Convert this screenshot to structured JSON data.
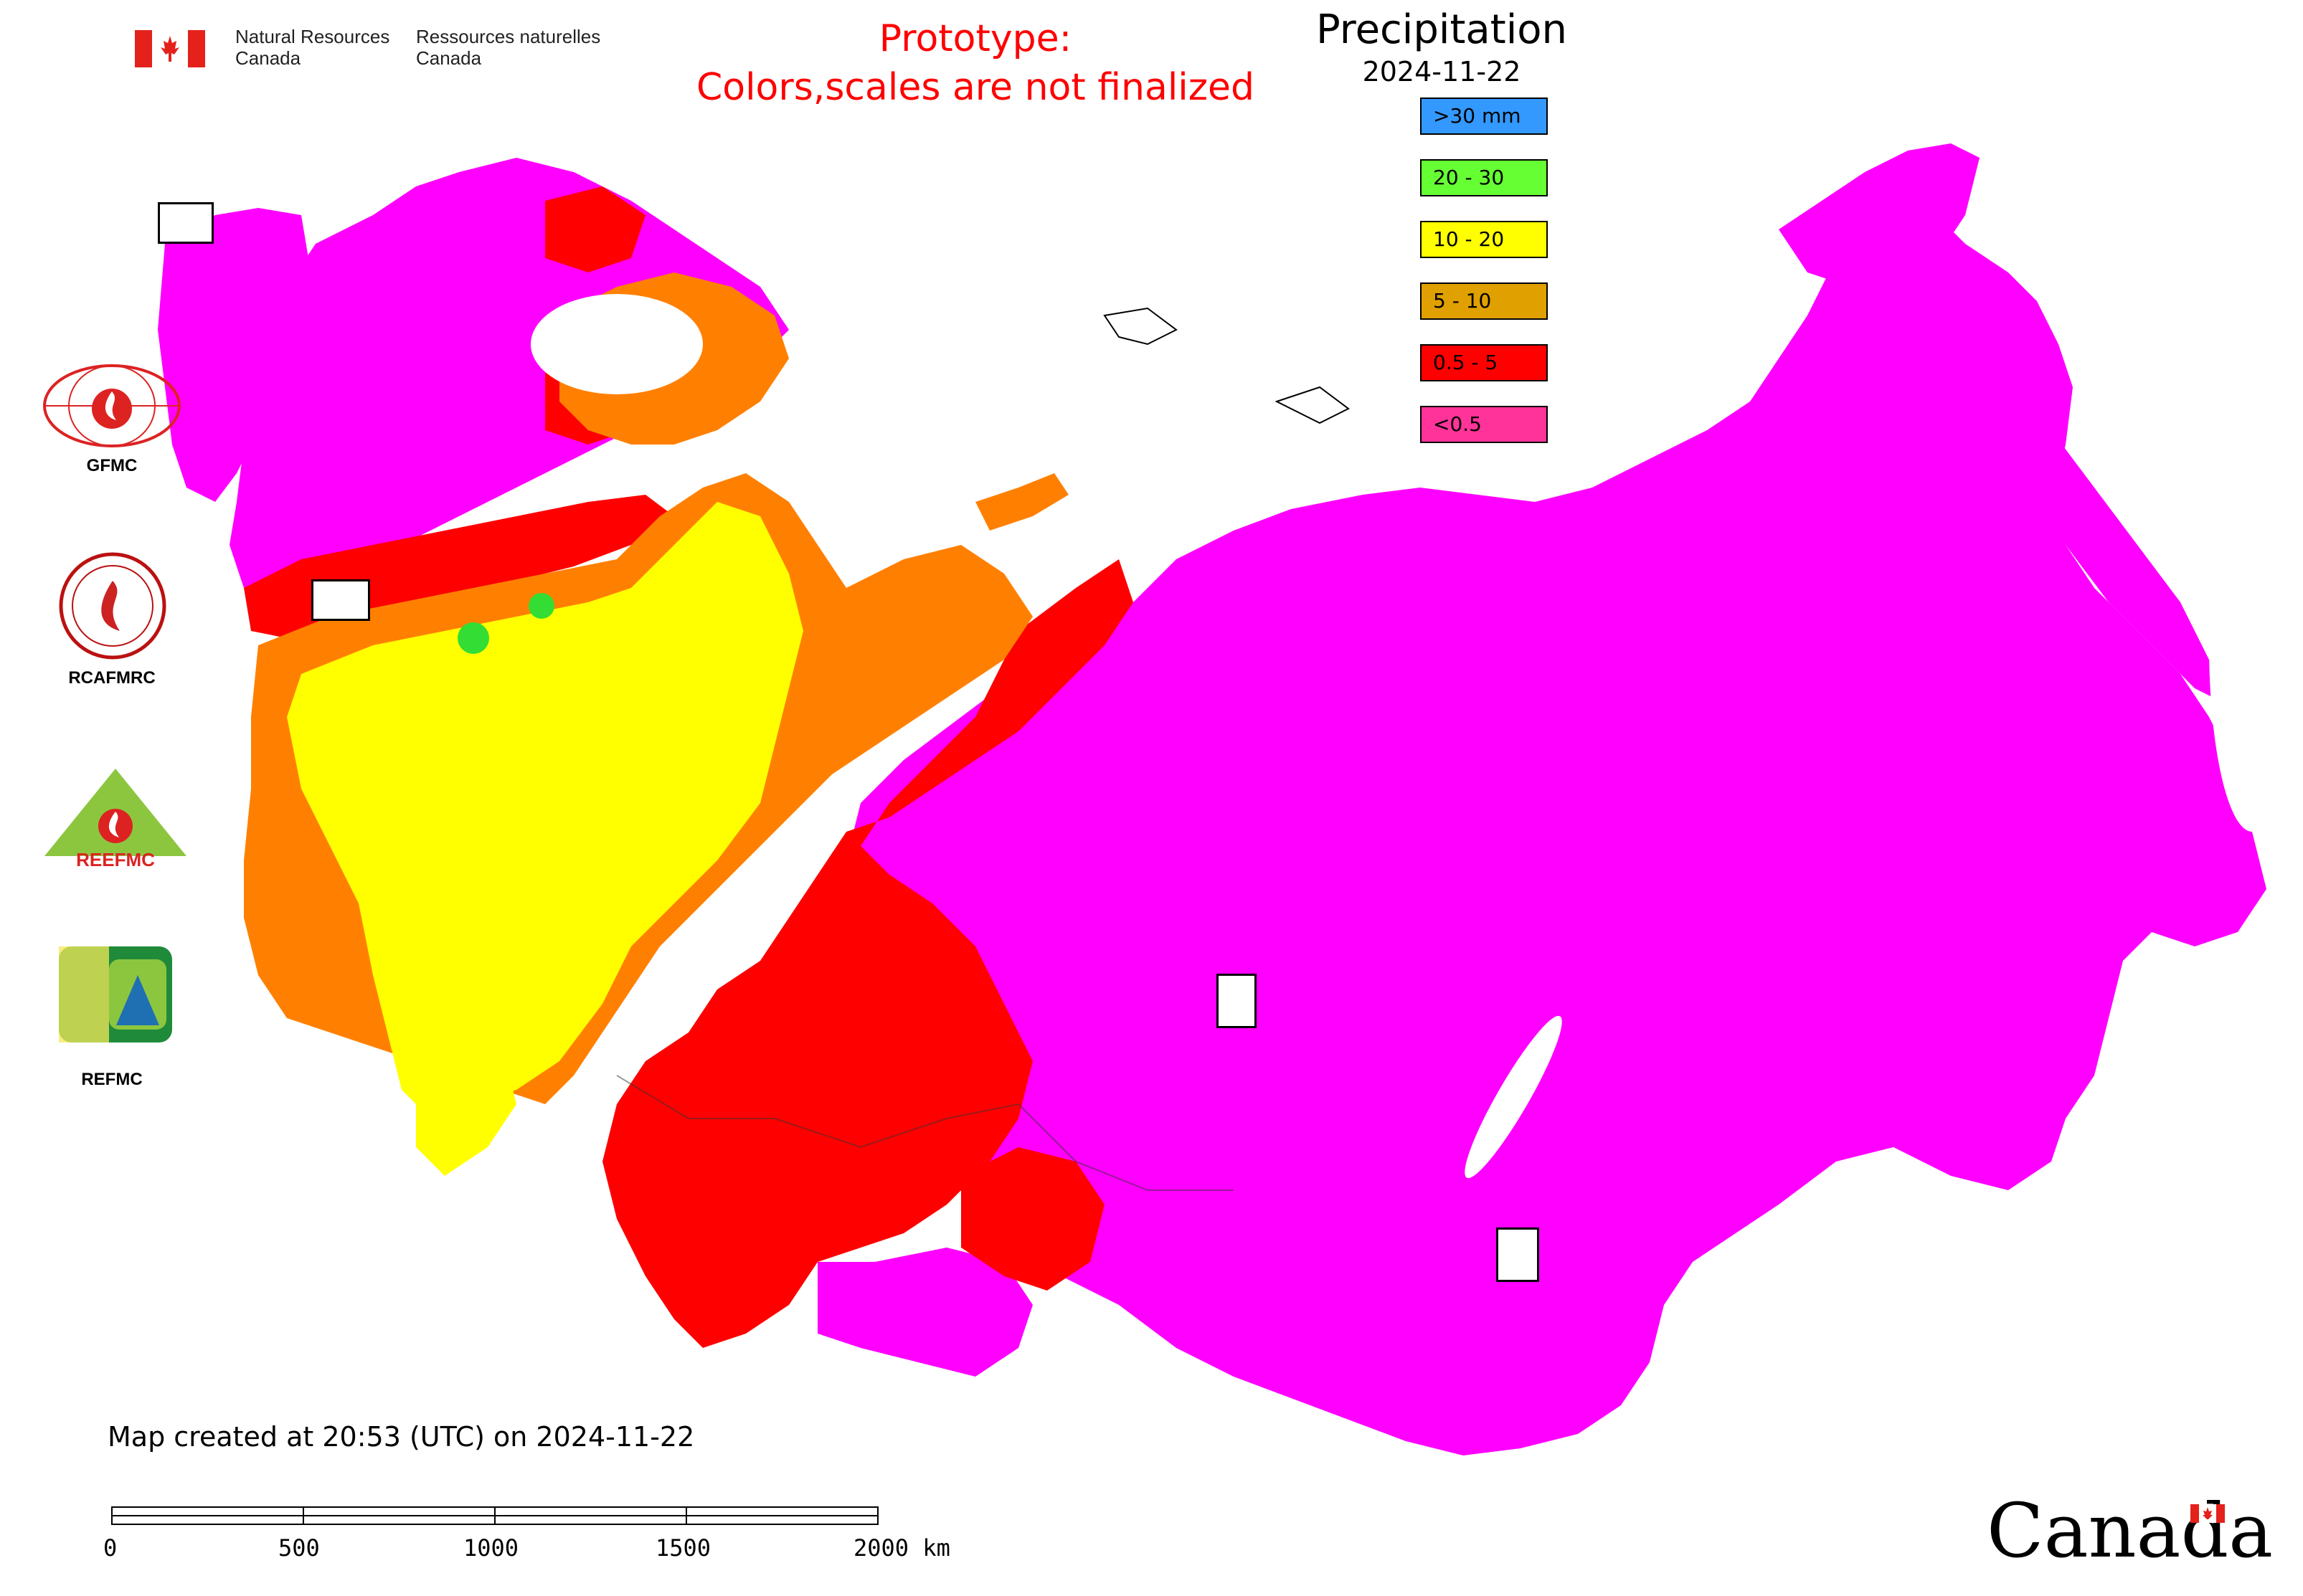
{
  "header": {
    "dept_en": "Natural Resources\nCanada",
    "dept_fr": "Ressources naturelles\nCanada",
    "prototype_line1": "Prototype:",
    "prototype_line2": "Colors,scales are not finalized"
  },
  "legend": {
    "title": "Precipitation",
    "date": "2024-11-22",
    "items": [
      {
        "label": ">30 mm",
        "color": "#3399ff"
      },
      {
        "label": "20 - 30",
        "color": "#66ff33"
      },
      {
        "label": "10 - 20",
        "color": "#ffff00"
      },
      {
        "label": "5 - 10",
        "color": "#e0a000"
      },
      {
        "label": "0.5 - 5",
        "color": "#ff0000"
      },
      {
        "label": "<0.5",
        "color": "#ff3399"
      }
    ]
  },
  "map_colors": {
    "lt_0_5": "#ff00ff",
    "c0_5_5": "#ff0000",
    "c5_10": "#ff8000",
    "c10_20": "#ffff00",
    "c20_30": "#33dd33",
    "water": "#ffffff"
  },
  "logos": {
    "gfmc": "GFMC",
    "rcafmrc": "RCAFMRC",
    "reefmc": "REEFMC",
    "refmc": "REFMC",
    "reefmc_wordmark": "REEFMC"
  },
  "footer": {
    "created": "Map created at 20:53 (UTC) on 2024-11-22",
    "scale_ticks": [
      "0",
      "500",
      "1000",
      "1500",
      "2000 km"
    ],
    "wordmark": "Canada"
  }
}
